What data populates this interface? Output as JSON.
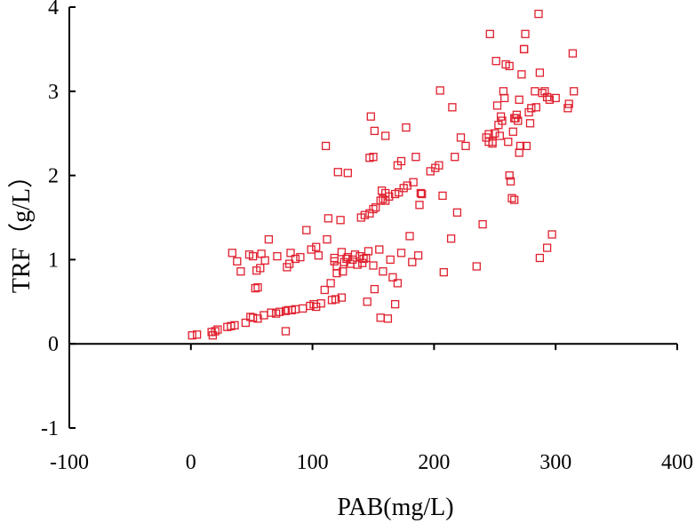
{
  "chart_data": {
    "type": "scatter",
    "title": "",
    "xlabel": "PAB(mg/L)",
    "ylabel": "TRF（g/L）",
    "xlim": [
      -100,
      400
    ],
    "ylim": [
      -1,
      4
    ],
    "xticks": [
      -100,
      0,
      100,
      200,
      300,
      400
    ],
    "yticks": [
      -1,
      0,
      1,
      2,
      3,
      4
    ],
    "xtick_labels": [
      "-100",
      "0",
      "100",
      "200",
      "300",
      "400"
    ],
    "ytick_labels": [
      "-1",
      "0",
      "1",
      "2",
      "3",
      "4"
    ],
    "grid": false,
    "legend": "none",
    "marker": "open-square",
    "marker_color": "#e0202e",
    "series": [
      {
        "points": [
          [
            1,
            0.1
          ],
          [
            5,
            0.11
          ],
          [
            17,
            0.14
          ],
          [
            20,
            0.15
          ],
          [
            22,
            0.17
          ],
          [
            18,
            0.1
          ],
          [
            30,
            0.2
          ],
          [
            33,
            0.21
          ],
          [
            36,
            0.22
          ],
          [
            45,
            0.25
          ],
          [
            49,
            0.32
          ],
          [
            51,
            0.31
          ],
          [
            55,
            0.3
          ],
          [
            60,
            0.34
          ],
          [
            66,
            0.37
          ],
          [
            70,
            0.36
          ],
          [
            73,
            0.38
          ],
          [
            78,
            0.39
          ],
          [
            80,
            0.4
          ],
          [
            83,
            0.4
          ],
          [
            86,
            0.41
          ],
          [
            92,
            0.42
          ],
          [
            98,
            0.45
          ],
          [
            101,
            0.47
          ],
          [
            103,
            0.44
          ],
          [
            107,
            0.48
          ],
          [
            78,
            0.15
          ],
          [
            116,
            0.52
          ],
          [
            119,
            0.53
          ],
          [
            124,
            0.55
          ],
          [
            156,
            0.31
          ],
          [
            162,
            0.3
          ],
          [
            168,
            0.47
          ],
          [
            34,
            1.08
          ],
          [
            38,
            0.98
          ],
          [
            41,
            0.86
          ],
          [
            48,
            1.06
          ],
          [
            51,
            1.04
          ],
          [
            54,
            0.87
          ],
          [
            57,
            0.9
          ],
          [
            58,
            1.07
          ],
          [
            61,
            0.99
          ],
          [
            64,
            1.24
          ],
          [
            53,
            0.66
          ],
          [
            55,
            0.67
          ],
          [
            71,
            1.04
          ],
          [
            79,
            0.91
          ],
          [
            81,
            0.95
          ],
          [
            82,
            1.08
          ],
          [
            86,
            1.01
          ],
          [
            90,
            1.03
          ],
          [
            95,
            1.35
          ],
          [
            99,
            1.12
          ],
          [
            103,
            1.15
          ],
          [
            105,
            1.05
          ],
          [
            112,
            1.24
          ],
          [
            113,
            1.49
          ],
          [
            115,
            0.72
          ],
          [
            118,
            0.98
          ],
          [
            118,
            1.02
          ],
          [
            120,
            0.92
          ],
          [
            123,
            1.47
          ],
          [
            124,
            1.09
          ],
          [
            126,
            0.97
          ],
          [
            128,
            1.01
          ],
          [
            129,
            1.03
          ],
          [
            131,
            0.95
          ],
          [
            133,
            1.0
          ],
          [
            135,
            1.06
          ],
          [
            137,
            0.94
          ],
          [
            139,
            1.04
          ],
          [
            141,
            0.96
          ],
          [
            142,
            1.01
          ],
          [
            144,
            1.02
          ],
          [
            146,
            1.1
          ],
          [
            150,
            0.93
          ],
          [
            151,
            0.65
          ],
          [
            155,
            1.12
          ],
          [
            158,
            0.86
          ],
          [
            164,
            1.0
          ],
          [
            166,
            0.79
          ],
          [
            170,
            0.72
          ],
          [
            173,
            1.08
          ],
          [
            180,
            1.28
          ],
          [
            182,
            0.97
          ],
          [
            187,
            1.05
          ],
          [
            208,
            0.85
          ],
          [
            214,
            1.25
          ],
          [
            235,
            0.92
          ],
          [
            120,
            0.84
          ],
          [
            125,
            0.86
          ],
          [
            110,
            0.64
          ],
          [
            145,
            0.5
          ],
          [
            140,
            1.5
          ],
          [
            143,
            1.53
          ],
          [
            147,
            1.55
          ],
          [
            150,
            1.6
          ],
          [
            152,
            1.62
          ],
          [
            156,
            1.7
          ],
          [
            158,
            1.72
          ],
          [
            160,
            1.7
          ],
          [
            163,
            1.75
          ],
          [
            168,
            1.78
          ],
          [
            171,
            1.8
          ],
          [
            175,
            1.85
          ],
          [
            178,
            1.88
          ],
          [
            183,
            1.92
          ],
          [
            188,
            1.65
          ],
          [
            190,
            1.78
          ],
          [
            197,
            2.05
          ],
          [
            201,
            2.09
          ],
          [
            204,
            2.12
          ],
          [
            207,
            1.76
          ],
          [
            217,
            2.22
          ],
          [
            219,
            1.56
          ],
          [
            222,
            2.45
          ],
          [
            226,
            2.35
          ],
          [
            240,
            1.42
          ],
          [
            157,
            1.82
          ],
          [
            160,
            1.79
          ],
          [
            170,
            2.12
          ],
          [
            173,
            2.17
          ],
          [
            177,
            2.57
          ],
          [
            185,
            2.22
          ],
          [
            147,
            2.21
          ],
          [
            150,
            2.22
          ],
          [
            148,
            2.7
          ],
          [
            151,
            2.53
          ],
          [
            160,
            2.47
          ],
          [
            129,
            2.03
          ],
          [
            121,
            2.04
          ],
          [
            111,
            2.35
          ],
          [
            189,
            1.79
          ],
          [
            205,
            3.01
          ],
          [
            215,
            2.81
          ],
          [
            243,
            2.45
          ],
          [
            245,
            2.4
          ],
          [
            248,
            2.38
          ],
          [
            250,
            2.5
          ],
          [
            253,
            2.6
          ],
          [
            255,
            2.7
          ],
          [
            257,
            3.0
          ],
          [
            259,
            3.32
          ],
          [
            261,
            2.4
          ],
          [
            262,
            2.0
          ],
          [
            263,
            1.93
          ],
          [
            264,
            1.73
          ],
          [
            266,
            1.71
          ],
          [
            267,
            2.68
          ],
          [
            269,
            2.65
          ],
          [
            270,
            2.9
          ],
          [
            272,
            3.2
          ],
          [
            274,
            3.5
          ],
          [
            275,
            3.68
          ],
          [
            276,
            2.35
          ],
          [
            278,
            2.75
          ],
          [
            280,
            2.8
          ],
          [
            283,
            3.0
          ],
          [
            286,
            3.92
          ],
          [
            287,
            3.22
          ],
          [
            289,
            2.98
          ],
          [
            291,
            3.0
          ],
          [
            293,
            2.93
          ],
          [
            295,
            2.9
          ],
          [
            297,
            1.3
          ],
          [
            300,
            2.92
          ],
          [
            310,
            2.8
          ],
          [
            311,
            2.85
          ],
          [
            314,
            3.45
          ],
          [
            315,
            3.0
          ],
          [
            246,
            3.68
          ],
          [
            248,
            2.4
          ],
          [
            251,
            3.36
          ],
          [
            252,
            2.83
          ],
          [
            256,
            2.65
          ],
          [
            258,
            2.92
          ],
          [
            266,
            2.68
          ],
          [
            268,
            2.72
          ],
          [
            270,
            2.27
          ],
          [
            287,
            1.02
          ],
          [
            293,
            1.14
          ],
          [
            262,
            3.3
          ],
          [
            274,
            3.5
          ],
          [
            279,
            2.62
          ],
          [
            245,
            2.49
          ],
          [
            254,
            2.47
          ],
          [
            265,
            2.52
          ],
          [
            271,
            2.35
          ],
          [
            284,
            2.81
          ]
        ]
      }
    ]
  }
}
